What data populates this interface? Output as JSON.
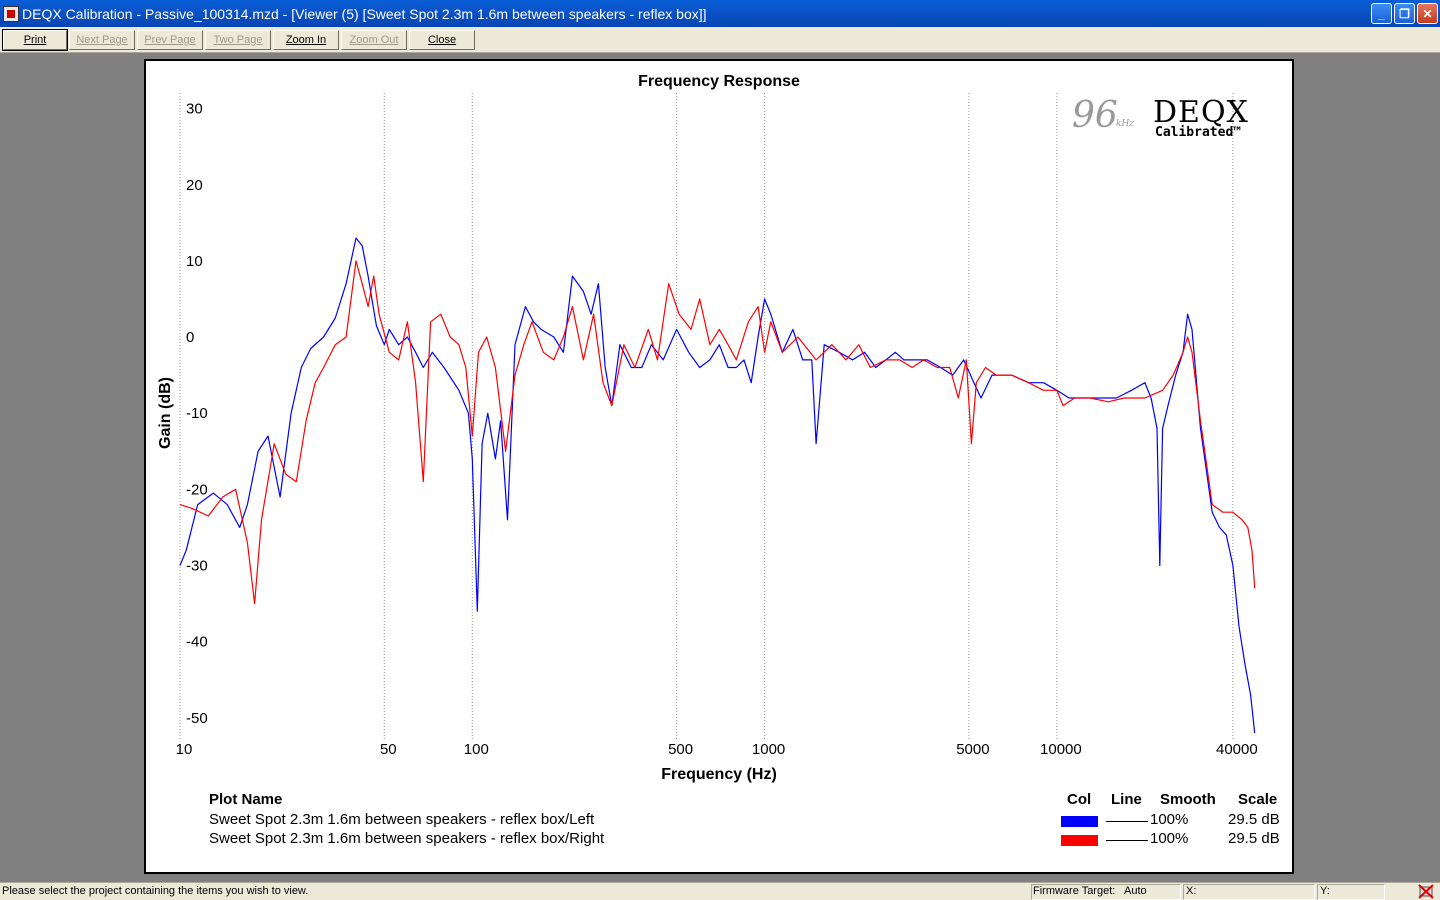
{
  "window": {
    "title": "DEQX Calibration - Passive_100314.mzd - [Viewer (5) [Sweet Spot 2.3m 1.6m between speakers - reflex box]]",
    "buttons": [
      "minimize",
      "restore",
      "close"
    ]
  },
  "toolbar": {
    "items": [
      {
        "label": "Print",
        "enabled": true
      },
      {
        "label": "Next Page",
        "enabled": false
      },
      {
        "label": "Prev Page",
        "enabled": false
      },
      {
        "label": "Two Page",
        "enabled": false
      },
      {
        "label": "Zoom In",
        "enabled": true
      },
      {
        "label": "Zoom Out",
        "enabled": false
      },
      {
        "label": "Close",
        "enabled": true
      }
    ]
  },
  "logo": {
    "rate": "96",
    "unit": "kHz",
    "brand": "DEQX",
    "tagline": "Calibrated™"
  },
  "chart_data": {
    "type": "line",
    "title": "Frequency Response",
    "xlabel": "Frequency (Hz)",
    "ylabel": "Gain (dB)",
    "x_scale": "log",
    "xlim": [
      10,
      48000
    ],
    "ylim": [
      -52,
      31
    ],
    "x_ticks": [
      10,
      50,
      100,
      500,
      1000,
      5000,
      10000,
      40000
    ],
    "y_ticks": [
      30,
      20,
      10,
      0,
      -10,
      -20,
      -30,
      -40,
      -50
    ],
    "grid": "vertical dotted",
    "series": [
      {
        "name": "Sweet Spot 2.3m 1.6m between speakers - reflex box/Left",
        "color": "#0000ff",
        "points": [
          [
            10,
            -30
          ],
          [
            10.5,
            -28
          ],
          [
            11.5,
            -22
          ],
          [
            13,
            -20.5
          ],
          [
            14.5,
            -22
          ],
          [
            16,
            -25
          ],
          [
            17,
            -22
          ],
          [
            18.5,
            -15
          ],
          [
            20,
            -13
          ],
          [
            22,
            -21
          ],
          [
            24,
            -10
          ],
          [
            26,
            -4
          ],
          [
            28,
            -1.5
          ],
          [
            31,
            0
          ],
          [
            34,
            2.5
          ],
          [
            37,
            7
          ],
          [
            40,
            13
          ],
          [
            42,
            12
          ],
          [
            44,
            8
          ],
          [
            47,
            1.5
          ],
          [
            50,
            -1
          ],
          [
            52,
            1
          ],
          [
            56,
            -1
          ],
          [
            60,
            0
          ],
          [
            64,
            -2
          ],
          [
            68,
            -4
          ],
          [
            73,
            -2
          ],
          [
            80,
            -4
          ],
          [
            90,
            -7
          ],
          [
            97,
            -10
          ],
          [
            100,
            -16
          ],
          [
            104,
            -36
          ],
          [
            108,
            -14
          ],
          [
            113,
            -10
          ],
          [
            120,
            -16
          ],
          [
            125,
            -11
          ],
          [
            132,
            -24
          ],
          [
            140,
            -1
          ],
          [
            152,
            4
          ],
          [
            162,
            2
          ],
          [
            172,
            1
          ],
          [
            190,
            0
          ],
          [
            205,
            -2
          ],
          [
            220,
            8
          ],
          [
            240,
            6
          ],
          [
            255,
            3
          ],
          [
            270,
            7
          ],
          [
            285,
            -4
          ],
          [
            300,
            -9
          ],
          [
            320,
            -1
          ],
          [
            350,
            -4
          ],
          [
            380,
            -4
          ],
          [
            410,
            -1
          ],
          [
            450,
            -3
          ],
          [
            500,
            1
          ],
          [
            550,
            -2
          ],
          [
            600,
            -4
          ],
          [
            650,
            -3
          ],
          [
            700,
            -1
          ],
          [
            750,
            -4
          ],
          [
            800,
            -4
          ],
          [
            850,
            -3
          ],
          [
            900,
            -6
          ],
          [
            950,
            0
          ],
          [
            1000,
            5
          ],
          [
            1050,
            3
          ],
          [
            1150,
            -2
          ],
          [
            1250,
            1
          ],
          [
            1350,
            -3
          ],
          [
            1450,
            -3
          ],
          [
            1500,
            -14
          ],
          [
            1600,
            -1
          ],
          [
            1800,
            -2
          ],
          [
            2000,
            -3
          ],
          [
            2200,
            -2
          ],
          [
            2400,
            -4
          ],
          [
            2600,
            -3
          ],
          [
            2800,
            -2
          ],
          [
            3000,
            -3
          ],
          [
            3300,
            -3
          ],
          [
            3600,
            -3
          ],
          [
            4000,
            -4
          ],
          [
            4400,
            -5
          ],
          [
            4800,
            -3
          ],
          [
            5200,
            -6
          ],
          [
            5500,
            -8
          ],
          [
            6000,
            -5
          ],
          [
            6500,
            -5
          ],
          [
            7000,
            -5
          ],
          [
            8000,
            -6
          ],
          [
            9000,
            -6
          ],
          [
            10000,
            -7
          ],
          [
            11000,
            -8
          ],
          [
            12500,
            -8
          ],
          [
            14000,
            -8
          ],
          [
            16000,
            -8
          ],
          [
            18000,
            -7
          ],
          [
            20000,
            -6
          ],
          [
            21000,
            -8
          ],
          [
            22000,
            -12
          ],
          [
            22500,
            -30
          ],
          [
            23000,
            -12
          ],
          [
            24000,
            -9
          ],
          [
            25500,
            -5
          ],
          [
            27000,
            -2
          ],
          [
            28000,
            3
          ],
          [
            29000,
            1
          ],
          [
            31000,
            -12
          ],
          [
            34000,
            -23
          ],
          [
            36000,
            -25
          ],
          [
            38000,
            -26
          ],
          [
            40000,
            -30
          ],
          [
            42000,
            -38
          ],
          [
            44000,
            -43
          ],
          [
            46000,
            -47
          ],
          [
            47500,
            -52
          ]
        ]
      },
      {
        "name": "Sweet Spot 2.3m 1.6m between speakers - reflex box/Right",
        "color": "#ff0000",
        "points": [
          [
            10,
            -22
          ],
          [
            11,
            -22.5
          ],
          [
            12.5,
            -23.5
          ],
          [
            14,
            -21
          ],
          [
            15.5,
            -20
          ],
          [
            17,
            -27
          ],
          [
            18,
            -35
          ],
          [
            19,
            -24
          ],
          [
            21,
            -14
          ],
          [
            23,
            -18
          ],
          [
            25,
            -19
          ],
          [
            27,
            -11
          ],
          [
            29,
            -6
          ],
          [
            31,
            -4
          ],
          [
            34,
            -1
          ],
          [
            37,
            0
          ],
          [
            40,
            10
          ],
          [
            42,
            7
          ],
          [
            44,
            4
          ],
          [
            46,
            8
          ],
          [
            48,
            3
          ],
          [
            52,
            -2
          ],
          [
            56,
            -3
          ],
          [
            60,
            2
          ],
          [
            64,
            -6
          ],
          [
            68,
            -19
          ],
          [
            72,
            2
          ],
          [
            78,
            3
          ],
          [
            84,
            0
          ],
          [
            90,
            -1
          ],
          [
            95,
            -4
          ],
          [
            100,
            -13
          ],
          [
            105,
            -2
          ],
          [
            112,
            0
          ],
          [
            120,
            -4
          ],
          [
            130,
            -15
          ],
          [
            140,
            -5
          ],
          [
            150,
            -1
          ],
          [
            160,
            2
          ],
          [
            175,
            -2
          ],
          [
            190,
            -3
          ],
          [
            205,
            0
          ],
          [
            220,
            4
          ],
          [
            240,
            -3
          ],
          [
            260,
            3
          ],
          [
            280,
            -6
          ],
          [
            300,
            -9
          ],
          [
            330,
            -1
          ],
          [
            360,
            -4
          ],
          [
            400,
            1
          ],
          [
            430,
            -3
          ],
          [
            470,
            7
          ],
          [
            510,
            3
          ],
          [
            560,
            1
          ],
          [
            600,
            5
          ],
          [
            650,
            -1
          ],
          [
            700,
            1
          ],
          [
            750,
            -1
          ],
          [
            800,
            -3
          ],
          [
            880,
            2
          ],
          [
            950,
            4
          ],
          [
            1000,
            -2
          ],
          [
            1050,
            2
          ],
          [
            1150,
            -2
          ],
          [
            1300,
            0
          ],
          [
            1500,
            -3
          ],
          [
            1700,
            -1
          ],
          [
            1900,
            -3
          ],
          [
            2100,
            -1
          ],
          [
            2300,
            -4
          ],
          [
            2600,
            -3
          ],
          [
            2900,
            -3
          ],
          [
            3200,
            -4
          ],
          [
            3500,
            -3
          ],
          [
            3900,
            -4
          ],
          [
            4300,
            -4
          ],
          [
            4600,
            -8
          ],
          [
            4900,
            -3
          ],
          [
            5100,
            -14
          ],
          [
            5300,
            -6
          ],
          [
            5700,
            -4
          ],
          [
            6200,
            -5
          ],
          [
            7000,
            -5
          ],
          [
            8000,
            -6
          ],
          [
            9000,
            -7
          ],
          [
            10000,
            -7
          ],
          [
            10500,
            -9
          ],
          [
            11500,
            -8
          ],
          [
            13000,
            -8
          ],
          [
            15000,
            -8.5
          ],
          [
            17000,
            -8
          ],
          [
            20000,
            -8
          ],
          [
            23000,
            -7
          ],
          [
            25000,
            -5
          ],
          [
            27000,
            -2
          ],
          [
            28000,
            0
          ],
          [
            29000,
            -2
          ],
          [
            31000,
            -11
          ],
          [
            34000,
            -22
          ],
          [
            37000,
            -23
          ],
          [
            40000,
            -23
          ],
          [
            43000,
            -24
          ],
          [
            45000,
            -25
          ],
          [
            46500,
            -28
          ],
          [
            47500,
            -33
          ]
        ]
      }
    ]
  },
  "legend": {
    "headers": {
      "name": "Plot Name",
      "col": "Col",
      "line": "Line",
      "smooth": "Smooth",
      "scale": "Scale"
    },
    "rows": [
      {
        "name": "Sweet Spot 2.3m 1.6m between speakers - reflex box/Left",
        "color": "#0000ff",
        "smooth": "100%",
        "scale": "29.5 dB"
      },
      {
        "name": "Sweet Spot 2.3m 1.6m between speakers - reflex box/Right",
        "color": "#ff0000",
        "smooth": "100%",
        "scale": "29.5 dB"
      }
    ]
  },
  "statusbar": {
    "message": "Please select the project containing the items you wish to view.",
    "firmware_label": "Firmware Target:",
    "firmware_value": "Auto",
    "x_label": "X:",
    "x_value": "",
    "y_label": "Y:",
    "y_value": ""
  }
}
